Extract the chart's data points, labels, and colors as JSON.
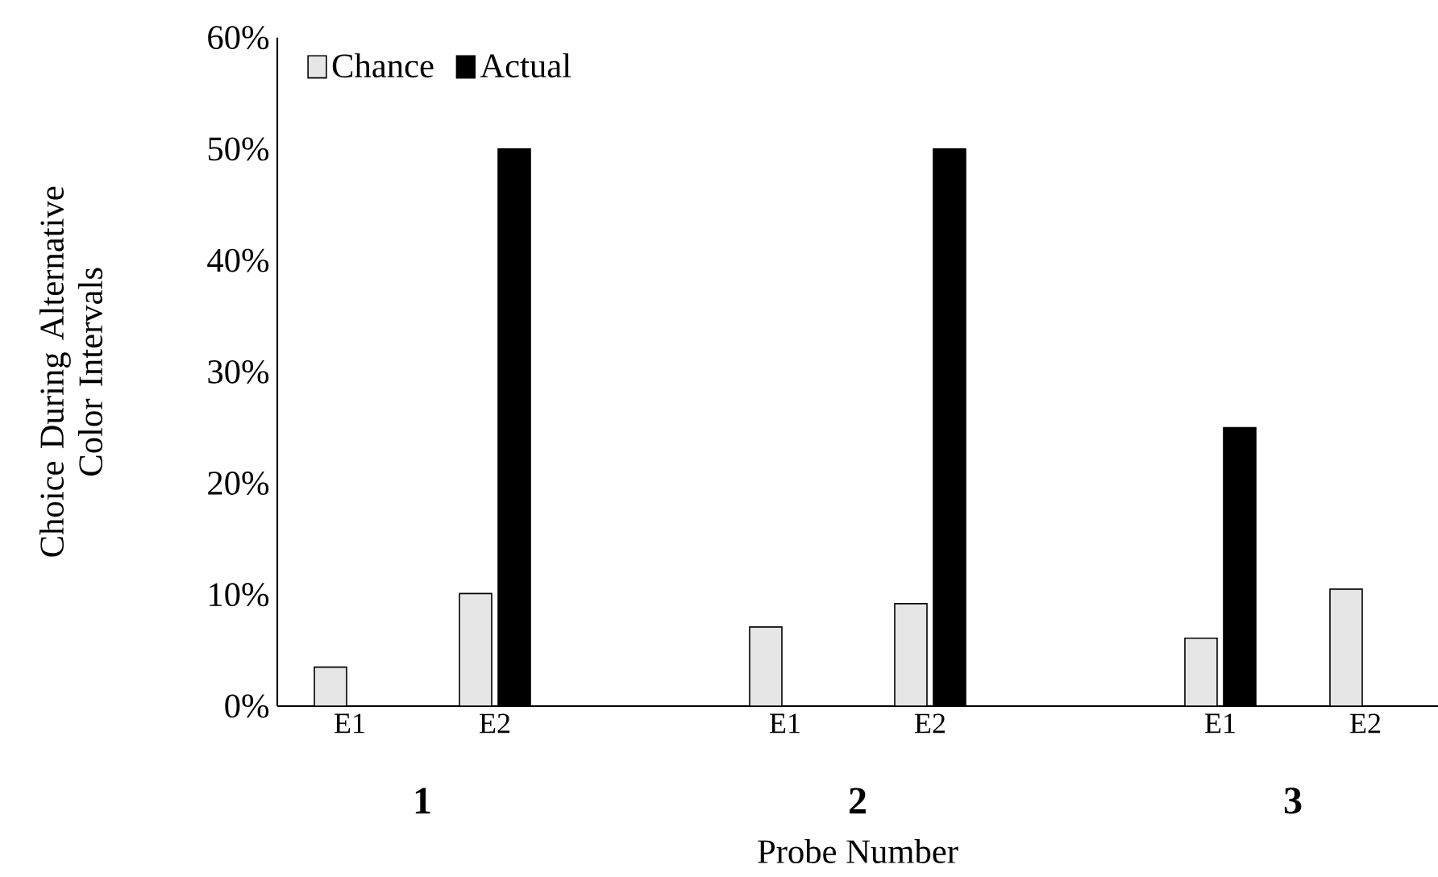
{
  "chart_data": {
    "type": "bar",
    "xlabel": "Probe Number",
    "ylabel": "Choice During Alternative Color Intervals",
    "categories": [
      "E1",
      "E2",
      null,
      "E1",
      "E2",
      null,
      "E1",
      "E2"
    ],
    "series": [
      {
        "name": "Chance",
        "color": "#e6e6e6",
        "values": [
          3.5,
          10.1,
          null,
          7.1,
          9.2,
          null,
          6.1,
          10.5
        ]
      },
      {
        "name": "Actual",
        "color": "#000000",
        "values": [
          0,
          50,
          null,
          0,
          50,
          null,
          25,
          0
        ]
      }
    ],
    "ylim": [
      0,
      60
    ],
    "yticks": [
      {
        "value": 0,
        "label": "0%"
      },
      {
        "value": 10,
        "label": "10%"
      },
      {
        "value": 20,
        "label": "20%"
      },
      {
        "value": 30,
        "label": "30%"
      },
      {
        "value": 40,
        "label": "40%"
      },
      {
        "value": 50,
        "label": "50%"
      },
      {
        "value": 60,
        "label": "60%"
      }
    ],
    "annotations": [
      "1",
      "2",
      "3"
    ],
    "legend": "top left",
    "grid": false
  }
}
